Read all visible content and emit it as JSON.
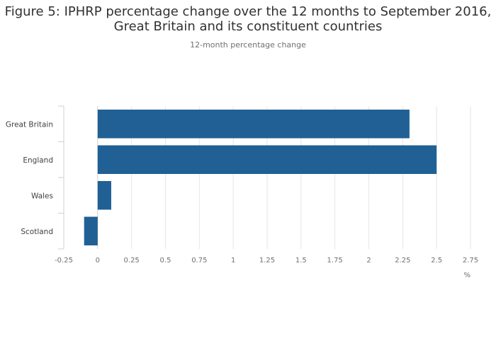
{
  "chart_data": {
    "type": "bar",
    "orientation": "horizontal",
    "title": "Figure 5: IPHRP percentage change over the 12 months to September 2016, Great Britain and its constituent countries",
    "title_lines": [
      "Figure 5: IPHRP percentage change over the 12 months to September 2016,",
      "Great Britain and its constituent countries"
    ],
    "subtitle": "12-month percentage change",
    "xlabel": "%",
    "categories": [
      "Great Britain",
      "England",
      "Wales",
      "Scotland"
    ],
    "values": [
      2.3,
      2.5,
      0.1,
      -0.1
    ],
    "xlim": [
      -0.25,
      2.75
    ],
    "xticks": [
      -0.25,
      0,
      0.25,
      0.5,
      0.75,
      1,
      1.25,
      1.5,
      1.75,
      2,
      2.25,
      2.5,
      2.75
    ],
    "xtick_labels": [
      "-0.25",
      "0",
      "0.25",
      "0.5",
      "0.75",
      "1",
      "1.25",
      "1.5",
      "1.75",
      "2",
      "2.25",
      "2.5",
      "2.75"
    ],
    "grid": true,
    "bar_color": "#206095",
    "grid_color": "#e6e6e6"
  }
}
